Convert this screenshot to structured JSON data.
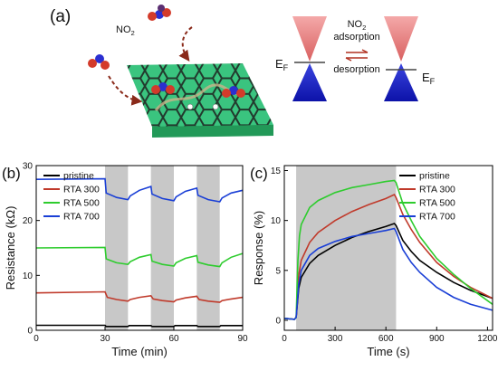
{
  "panel_a": {
    "label": "(a)",
    "molecule_label": "NO2",
    "adsorption_top": "NO2",
    "adsorption_bottom": "adsorption",
    "desorption": "desorption",
    "fermi_left": "EF",
    "fermi_right": "EF",
    "colors": {
      "sheet": "#35c07a",
      "cone_top": "#e98080",
      "cone_bottom": "#1a23c9",
      "arrow": "#b03020"
    }
  },
  "chart_data": [
    {
      "panel_label": "(b)",
      "type": "line",
      "title": "",
      "xlabel": "Time (min)",
      "ylabel": "Resistance (kΩ)",
      "xlim": [
        0,
        90
      ],
      "ylim": [
        0,
        30
      ],
      "xticks": [
        0,
        30,
        60,
        90
      ],
      "yticks": [
        0,
        10,
        20,
        30
      ],
      "shaded_regions": [
        [
          30,
          40
        ],
        [
          50,
          60
        ],
        [
          70,
          80
        ]
      ],
      "legend_position": "top-left",
      "series": [
        {
          "name": "pristine",
          "color": "#000000",
          "points": [
            [
              0,
              0.9
            ],
            [
              30,
              0.9
            ],
            [
              30.5,
              0.7
            ],
            [
              40,
              0.7
            ],
            [
              40.5,
              0.85
            ],
            [
              50,
              0.85
            ],
            [
              50.5,
              0.7
            ],
            [
              60,
              0.7
            ],
            [
              60.5,
              0.85
            ],
            [
              70,
              0.85
            ],
            [
              70.5,
              0.7
            ],
            [
              80,
              0.7
            ],
            [
              80.5,
              0.85
            ],
            [
              90,
              0.85
            ]
          ]
        },
        {
          "name": "RTA 300",
          "color": "#c03a2b",
          "points": [
            [
              0,
              6.8
            ],
            [
              30,
              7.0
            ],
            [
              31,
              6.0
            ],
            [
              35,
              5.6
            ],
            [
              40,
              5.3
            ],
            [
              41,
              5.6
            ],
            [
              45,
              6.0
            ],
            [
              50,
              6.3
            ],
            [
              51,
              5.7
            ],
            [
              55,
              5.4
            ],
            [
              60,
              5.2
            ],
            [
              61,
              5.5
            ],
            [
              65,
              5.9
            ],
            [
              70,
              6.2
            ],
            [
              71,
              5.6
            ],
            [
              75,
              5.3
            ],
            [
              80,
              5.1
            ],
            [
              81,
              5.4
            ],
            [
              85,
              5.7
            ],
            [
              90,
              6.0
            ]
          ]
        },
        {
          "name": "RTA 500",
          "color": "#2ecc2e",
          "points": [
            [
              0,
              15.0
            ],
            [
              30,
              15.1
            ],
            [
              30.5,
              13.0
            ],
            [
              35,
              12.3
            ],
            [
              40,
              12.0
            ],
            [
              41,
              12.5
            ],
            [
              45,
              13.3
            ],
            [
              50,
              13.8
            ],
            [
              50.5,
              12.6
            ],
            [
              55,
              12.0
            ],
            [
              60,
              11.7
            ],
            [
              61,
              12.3
            ],
            [
              65,
              13.1
            ],
            [
              70,
              13.6
            ],
            [
              70.5,
              12.4
            ],
            [
              75,
              11.9
            ],
            [
              80,
              11.6
            ],
            [
              81,
              12.3
            ],
            [
              85,
              13.3
            ],
            [
              90,
              14.0
            ]
          ]
        },
        {
          "name": "RTA 700",
          "color": "#1a3fd6",
          "points": [
            [
              0,
              27.5
            ],
            [
              30,
              27.6
            ],
            [
              30.5,
              25.0
            ],
            [
              35,
              24.2
            ],
            [
              40,
              23.8
            ],
            [
              41,
              24.5
            ],
            [
              45,
              25.5
            ],
            [
              50,
              26.2
            ],
            [
              50.5,
              24.8
            ],
            [
              55,
              24.0
            ],
            [
              60,
              23.6
            ],
            [
              61,
              24.3
            ],
            [
              65,
              25.3
            ],
            [
              70,
              25.9
            ],
            [
              70.5,
              24.6
            ],
            [
              75,
              23.8
            ],
            [
              80,
              23.4
            ],
            [
              81,
              24.1
            ],
            [
              85,
              25.0
            ],
            [
              90,
              25.5
            ]
          ]
        }
      ]
    },
    {
      "panel_label": "(c)",
      "type": "line",
      "title": "",
      "xlabel": "Time (s)",
      "ylabel": "Response (%)",
      "xlim": [
        0,
        1230
      ],
      "ylim": [
        -1,
        15.5
      ],
      "xticks": [
        0,
        300,
        600,
        900,
        1200
      ],
      "yticks": [
        0,
        5,
        10,
        15
      ],
      "shaded_regions": [
        [
          70,
          660
        ]
      ],
      "legend_position": "top-right",
      "series": [
        {
          "name": "pristine",
          "color": "#000000",
          "points": [
            [
              0,
              0.2
            ],
            [
              60,
              0.1
            ],
            [
              70,
              0.3
            ],
            [
              85,
              3.2
            ],
            [
              100,
              4.3
            ],
            [
              150,
              5.7
            ],
            [
              200,
              6.5
            ],
            [
              300,
              7.5
            ],
            [
              400,
              8.3
            ],
            [
              500,
              8.9
            ],
            [
              600,
              9.4
            ],
            [
              650,
              9.7
            ],
            [
              660,
              9.5
            ],
            [
              700,
              8.0
            ],
            [
              750,
              6.9
            ],
            [
              800,
              6.0
            ],
            [
              900,
              4.8
            ],
            [
              1000,
              3.8
            ],
            [
              1100,
              3.0
            ],
            [
              1230,
              2.2
            ]
          ]
        },
        {
          "name": "RTA 300",
          "color": "#c03a2b",
          "points": [
            [
              0,
              0.2
            ],
            [
              60,
              0.1
            ],
            [
              70,
              0.3
            ],
            [
              85,
              4.5
            ],
            [
              100,
              6.0
            ],
            [
              150,
              7.8
            ],
            [
              200,
              8.8
            ],
            [
              300,
              10.0
            ],
            [
              400,
              10.9
            ],
            [
              500,
              11.6
            ],
            [
              600,
              12.2
            ],
            [
              650,
              12.6
            ],
            [
              660,
              12.3
            ],
            [
              700,
              10.6
            ],
            [
              750,
              9.1
            ],
            [
              800,
              7.8
            ],
            [
              900,
              5.8
            ],
            [
              1000,
              4.4
            ],
            [
              1100,
              3.3
            ],
            [
              1230,
              2.2
            ]
          ]
        },
        {
          "name": "RTA 500",
          "color": "#2ecc2e",
          "points": [
            [
              0,
              0.2
            ],
            [
              60,
              0.1
            ],
            [
              70,
              0.3
            ],
            [
              80,
              6.0
            ],
            [
              90,
              8.5
            ],
            [
              100,
              9.6
            ],
            [
              150,
              11.3
            ],
            [
              200,
              12.0
            ],
            [
              300,
              12.8
            ],
            [
              400,
              13.3
            ],
            [
              500,
              13.6
            ],
            [
              600,
              13.9
            ],
            [
              650,
              14.0
            ],
            [
              660,
              13.8
            ],
            [
              700,
              11.7
            ],
            [
              750,
              10.0
            ],
            [
              800,
              8.4
            ],
            [
              900,
              6.2
            ],
            [
              1000,
              4.6
            ],
            [
              1100,
              3.2
            ],
            [
              1230,
              1.6
            ]
          ]
        },
        {
          "name": "RTA 700",
          "color": "#1a3fd6",
          "points": [
            [
              0,
              0.2
            ],
            [
              60,
              0.1
            ],
            [
              70,
              0.3
            ],
            [
              85,
              3.6
            ],
            [
              100,
              5.0
            ],
            [
              150,
              6.5
            ],
            [
              200,
              7.2
            ],
            [
              300,
              7.9
            ],
            [
              400,
              8.4
            ],
            [
              500,
              8.7
            ],
            [
              600,
              9.0
            ],
            [
              650,
              9.2
            ],
            [
              660,
              8.9
            ],
            [
              700,
              7.1
            ],
            [
              750,
              5.8
            ],
            [
              800,
              4.8
            ],
            [
              900,
              3.3
            ],
            [
              1000,
              2.3
            ],
            [
              1100,
              1.6
            ],
            [
              1230,
              1.0
            ]
          ]
        }
      ]
    }
  ]
}
